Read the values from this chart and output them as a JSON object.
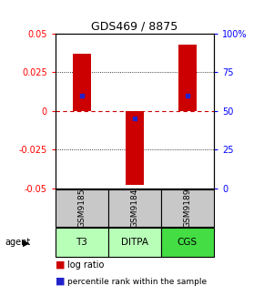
{
  "title": "GDS469 / 8875",
  "samples": [
    "GSM9185",
    "GSM9184",
    "GSM9189"
  ],
  "agents": [
    "T3",
    "DITPA",
    "CGS"
  ],
  "log_ratios": [
    0.037,
    -0.048,
    0.043
  ],
  "percentile_ranks_pct": [
    60,
    45,
    60
  ],
  "ylim": [
    -0.05,
    0.05
  ],
  "ylim_right": [
    0,
    100
  ],
  "yticks_left": [
    -0.05,
    -0.025,
    0,
    0.025,
    0.05
  ],
  "yticks_right": [
    0,
    25,
    50,
    75,
    100
  ],
  "bar_color": "#cc0000",
  "percentile_color": "#2222cc",
  "zero_line_color": "#cc0000",
  "sample_box_color": "#c8c8c8",
  "agent_colors": [
    "#b8ffb8",
    "#b8ffb8",
    "#44dd44"
  ],
  "bar_width": 0.35,
  "left_axis_color": "red",
  "right_axis_color": "blue"
}
